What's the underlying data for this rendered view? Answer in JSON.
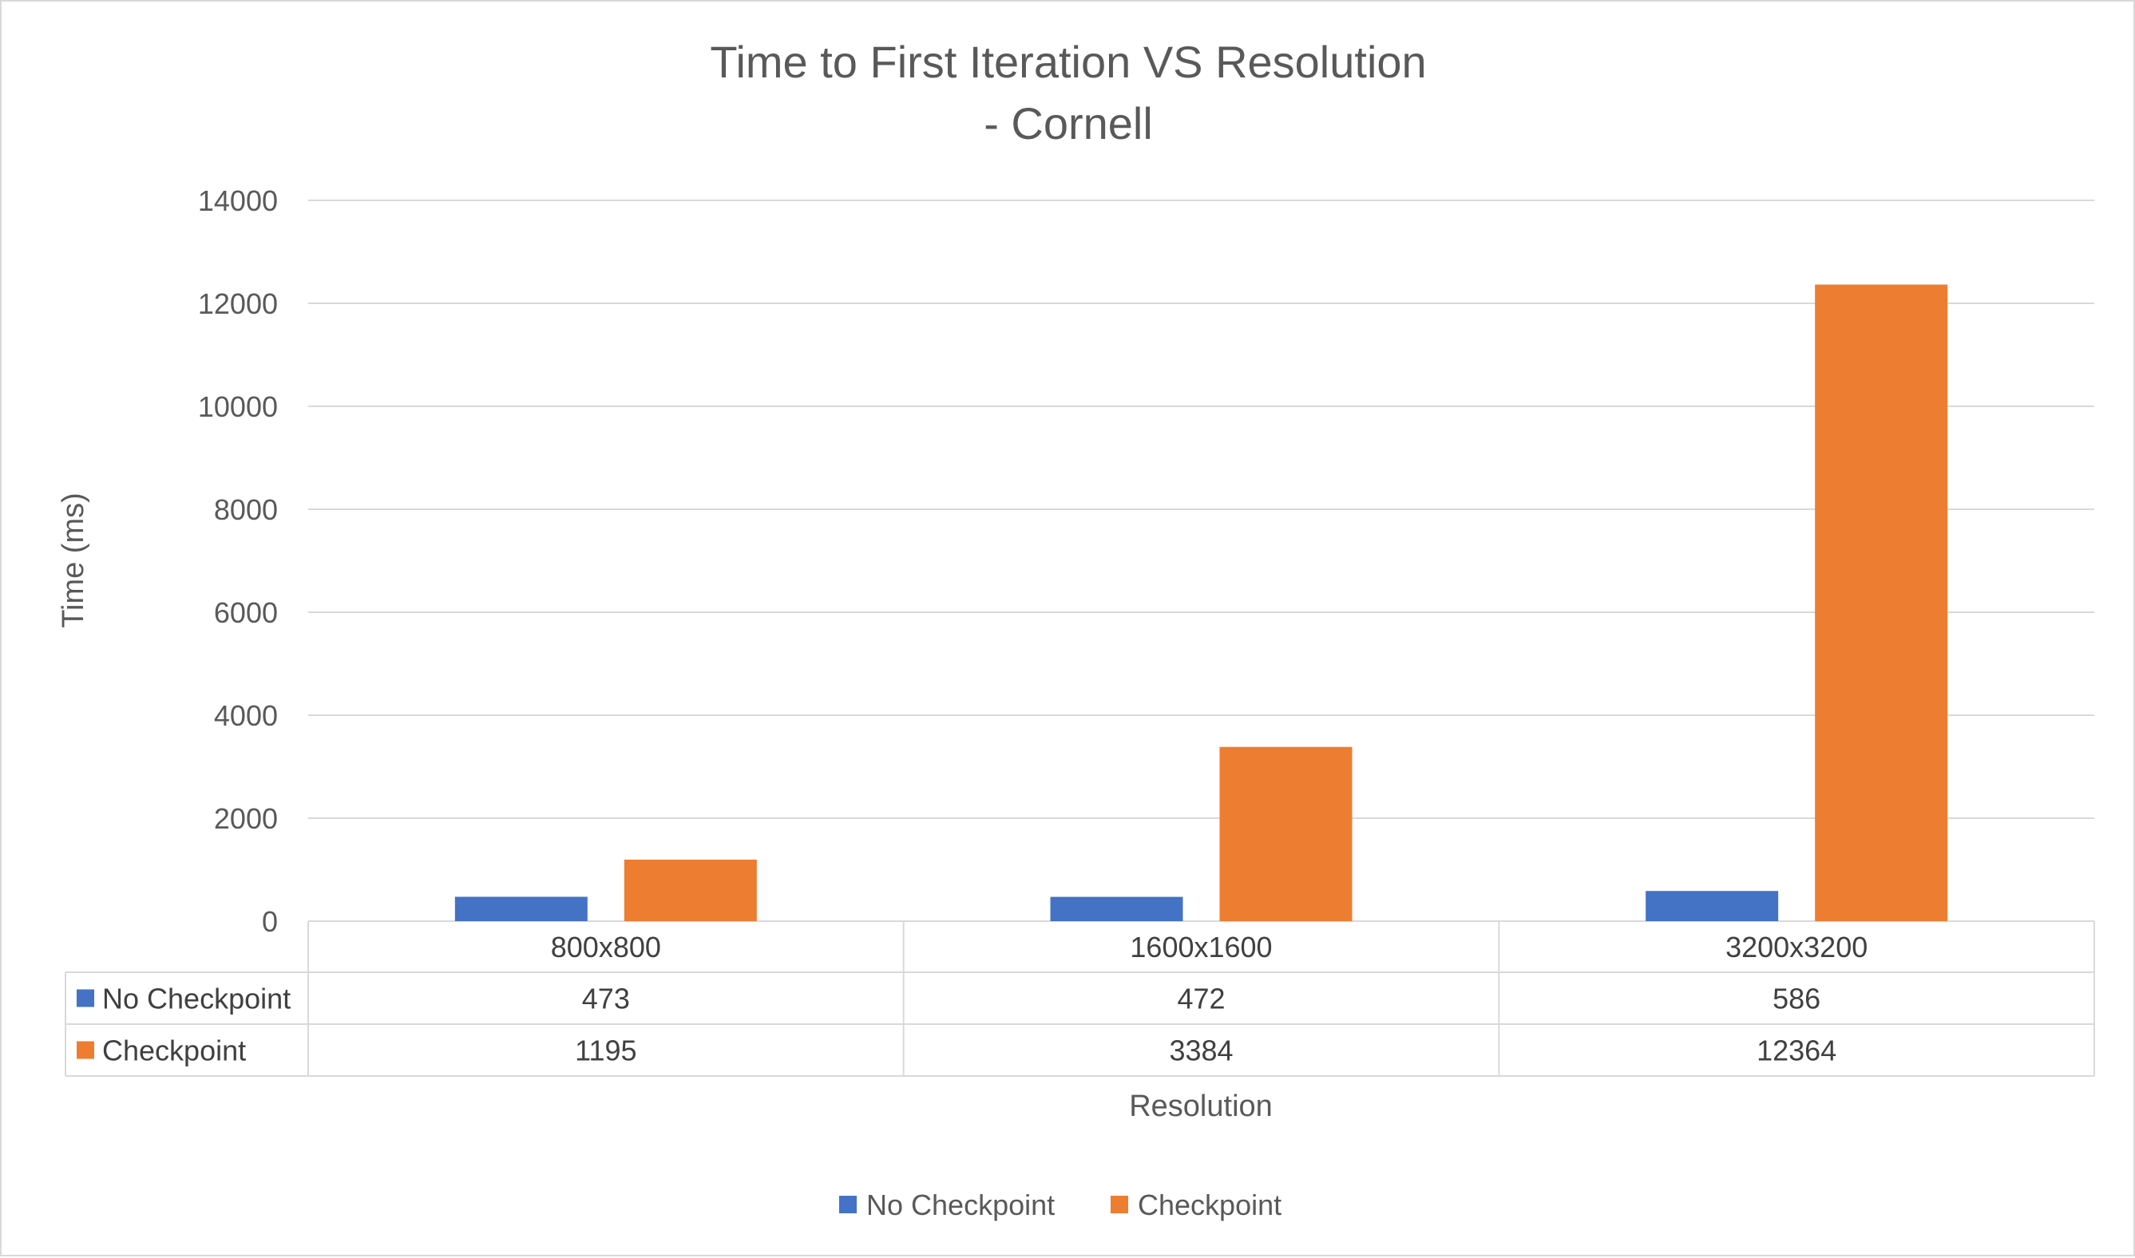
{
  "chart_data": {
    "type": "bar",
    "title": "Time to First Iteration VS Resolution",
    "subtitle": "- Cornell",
    "xlabel": "Resolution",
    "ylabel": "Time (ms)",
    "categories": [
      "800x800",
      "1600x1600",
      "3200x3200"
    ],
    "series": [
      {
        "name": "No Checkpoint",
        "values": [
          473,
          472,
          586
        ],
        "color": "#4472C4"
      },
      {
        "name": "Checkpoint",
        "values": [
          1195,
          3384,
          12364
        ],
        "color": "#ED7D31"
      }
    ],
    "ylim": [
      0,
      14000
    ],
    "yticks": [
      0,
      2000,
      4000,
      6000,
      8000,
      10000,
      12000,
      14000
    ],
    "grid": true,
    "legend_position": "bottom",
    "data_table": true
  }
}
